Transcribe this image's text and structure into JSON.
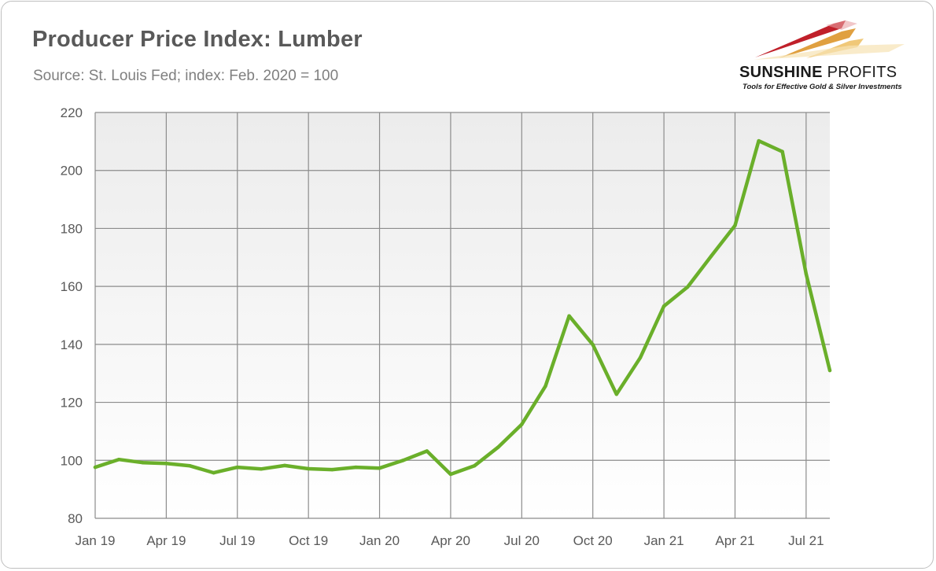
{
  "header": {
    "title": "Producer Price Index: Lumber",
    "subtitle": "Source: St. Louis Fed; index: Feb. 2020 = 100"
  },
  "logo": {
    "name_bold": "SUNSHINE",
    "name_thin": "PROFITS",
    "tagline": "Tools for Effective Gold & Silver Investments"
  },
  "colors": {
    "line": "#6aaf2a",
    "grid": "#8c8c8c",
    "plot_top": "#ececec",
    "plot_bottom": "#ffffff"
  },
  "chart_data": {
    "type": "line",
    "title": "Producer Price Index: Lumber",
    "subtitle": "Source: St. Louis Fed; index: Feb. 2020 = 100",
    "xlabel": "",
    "ylabel": "",
    "ylim": [
      80,
      220
    ],
    "yticks": [
      80,
      100,
      120,
      140,
      160,
      180,
      200,
      220
    ],
    "grid": true,
    "legend": "none",
    "x_tick_labels": [
      "Jan 19",
      "Apr 19",
      "Jul 19",
      "Oct 19",
      "Jan 20",
      "Apr 20",
      "Jul 20",
      "Oct 20",
      "Jan 21",
      "Apr 21",
      "Jul 21"
    ],
    "x_tick_months": [
      "2019-01",
      "2019-04",
      "2019-07",
      "2019-10",
      "2020-01",
      "2020-04",
      "2020-07",
      "2020-10",
      "2021-01",
      "2021-04",
      "2021-07"
    ],
    "xlim": [
      "2019-01",
      "2021-08"
    ],
    "series": [
      {
        "x": [
          "2019-01",
          "2019-02",
          "2019-03",
          "2019-04",
          "2019-05",
          "2019-06",
          "2019-07",
          "2019-08",
          "2019-09",
          "2019-10",
          "2019-11",
          "2019-12",
          "2020-01",
          "2020-02",
          "2020-03",
          "2020-04",
          "2020-05",
          "2020-06",
          "2020-07",
          "2020-08",
          "2020-09",
          "2020-10",
          "2020-11",
          "2020-12",
          "2021-01",
          "2021-02",
          "2021-03",
          "2021-04",
          "2021-05",
          "2021-06",
          "2021-07",
          "2021-08"
        ],
        "values": [
          97.6,
          100.3,
          99.2,
          98.9,
          98.1,
          95.7,
          97.6,
          97.0,
          98.2,
          97.1,
          96.8,
          97.6,
          97.3,
          100.0,
          103.2,
          95.2,
          98.1,
          104.5,
          112.4,
          125.6,
          149.8,
          139.9,
          122.8,
          135.4,
          153.2,
          159.8,
          170.5,
          181.0,
          210.2,
          206.5,
          164.3,
          131.0
        ]
      }
    ]
  }
}
